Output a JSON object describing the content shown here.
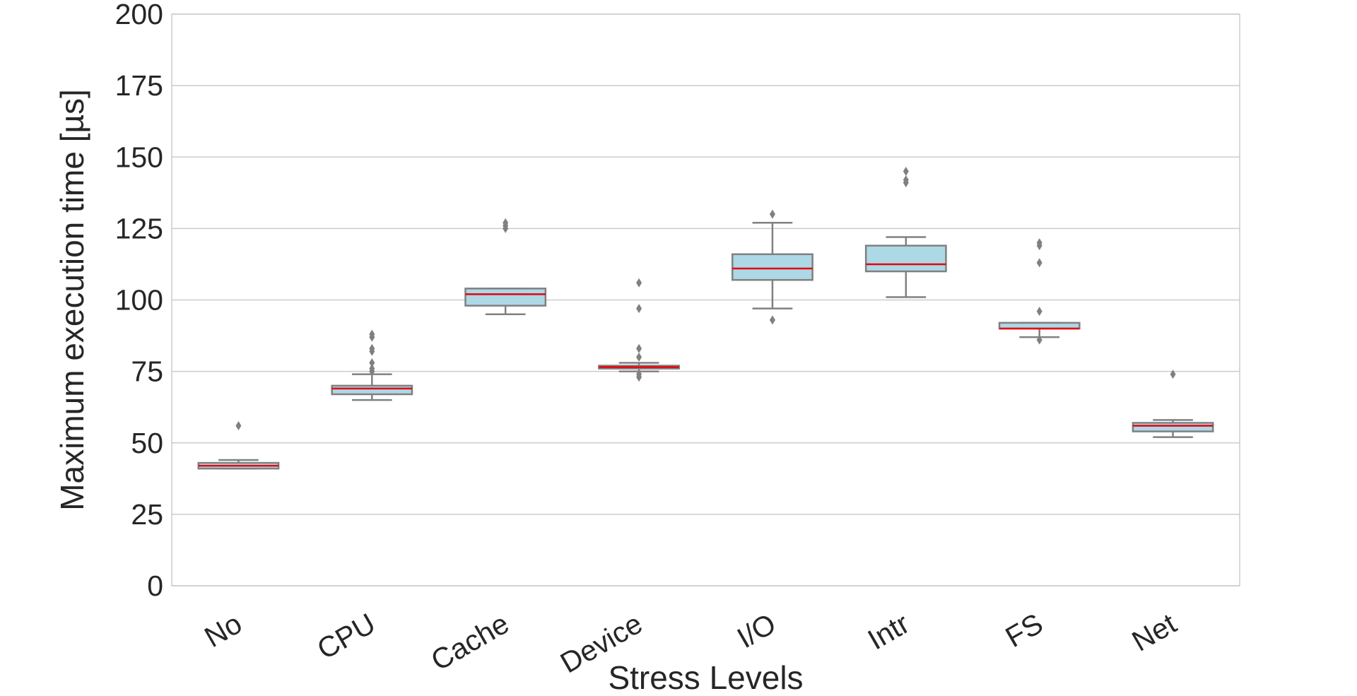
{
  "chart_data": {
    "type": "box",
    "title": "",
    "xlabel": "Stress Levels",
    "ylabel": "Maximum execution time [µs]",
    "ylim": [
      0,
      200
    ],
    "yticks": [
      "0",
      "25",
      "50",
      "75",
      "100",
      "125",
      "150",
      "175",
      "200"
    ],
    "grid": "horizontal",
    "legend": "none",
    "colors": {
      "box_fill": "#add8e6",
      "box_edge": "#808080",
      "median": "#e8000b",
      "grid": "#cccccc",
      "text": "#262626"
    },
    "categories": [
      "No",
      "CPU",
      "Cache",
      "Device",
      "I/O",
      "Intr",
      "FS",
      "Net"
    ],
    "boxes": [
      {
        "category": "No",
        "whisker_low": 41,
        "q1": 41,
        "median": 42,
        "q3": 43,
        "whisker_high": 44,
        "outliers": [
          56
        ]
      },
      {
        "category": "CPU",
        "whisker_low": 65,
        "q1": 67,
        "median": 69,
        "q3": 70,
        "whisker_high": 74,
        "outliers": [
          75,
          76,
          78,
          82,
          83,
          87,
          88
        ]
      },
      {
        "category": "Cache",
        "whisker_low": 95,
        "q1": 98,
        "median": 102,
        "q3": 104,
        "whisker_high": 104,
        "outliers": [
          125,
          126,
          127
        ]
      },
      {
        "category": "Device",
        "whisker_low": 75,
        "q1": 76,
        "median": 76.5,
        "q3": 77,
        "whisker_high": 78,
        "outliers": [
          73,
          74,
          80,
          83,
          97,
          106
        ]
      },
      {
        "category": "I/O",
        "whisker_low": 97,
        "q1": 107,
        "median": 111,
        "q3": 116,
        "whisker_high": 127,
        "outliers": [
          93,
          130
        ]
      },
      {
        "category": "Intr",
        "whisker_low": 101,
        "q1": 110,
        "median": 112.5,
        "q3": 119,
        "whisker_high": 122,
        "outliers": [
          141,
          142,
          145
        ]
      },
      {
        "category": "FS",
        "whisker_low": 87,
        "q1": 90,
        "median": 90,
        "q3": 92,
        "whisker_high": 92,
        "outliers": [
          86,
          96,
          113,
          119,
          120
        ]
      },
      {
        "category": "Net",
        "whisker_low": 52,
        "q1": 54,
        "median": 56,
        "q3": 57,
        "whisker_high": 58,
        "outliers": [
          74
        ]
      }
    ]
  }
}
